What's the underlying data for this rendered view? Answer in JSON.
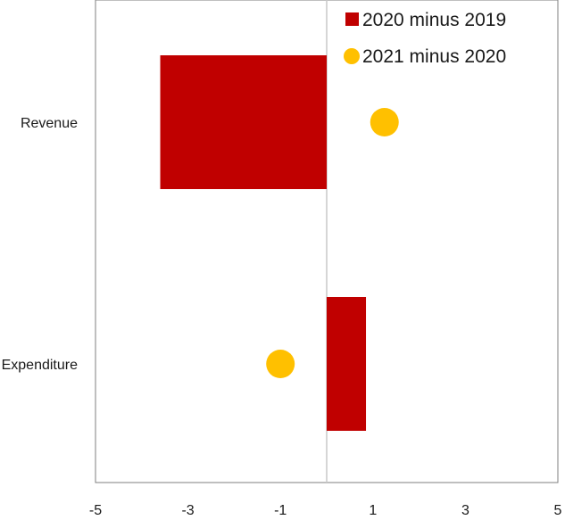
{
  "chart_data": {
    "type": "bar",
    "orientation": "horizontal",
    "categories": [
      "Revenue",
      "Expenditure"
    ],
    "series": [
      {
        "name": "2020 minus 2019",
        "mark": "bar",
        "color": "#c00000",
        "values": [
          -3.6,
          0.85
        ]
      },
      {
        "name": "2021 minus 2020",
        "mark": "dot",
        "color": "#ffc000",
        "values": [
          1.25,
          -1.0
        ]
      }
    ],
    "xlim": [
      -5,
      5
    ],
    "xticks": [
      "-5",
      "-3",
      "-1",
      "1",
      "3",
      "5"
    ],
    "legend_position": "top-right",
    "grid": false
  }
}
